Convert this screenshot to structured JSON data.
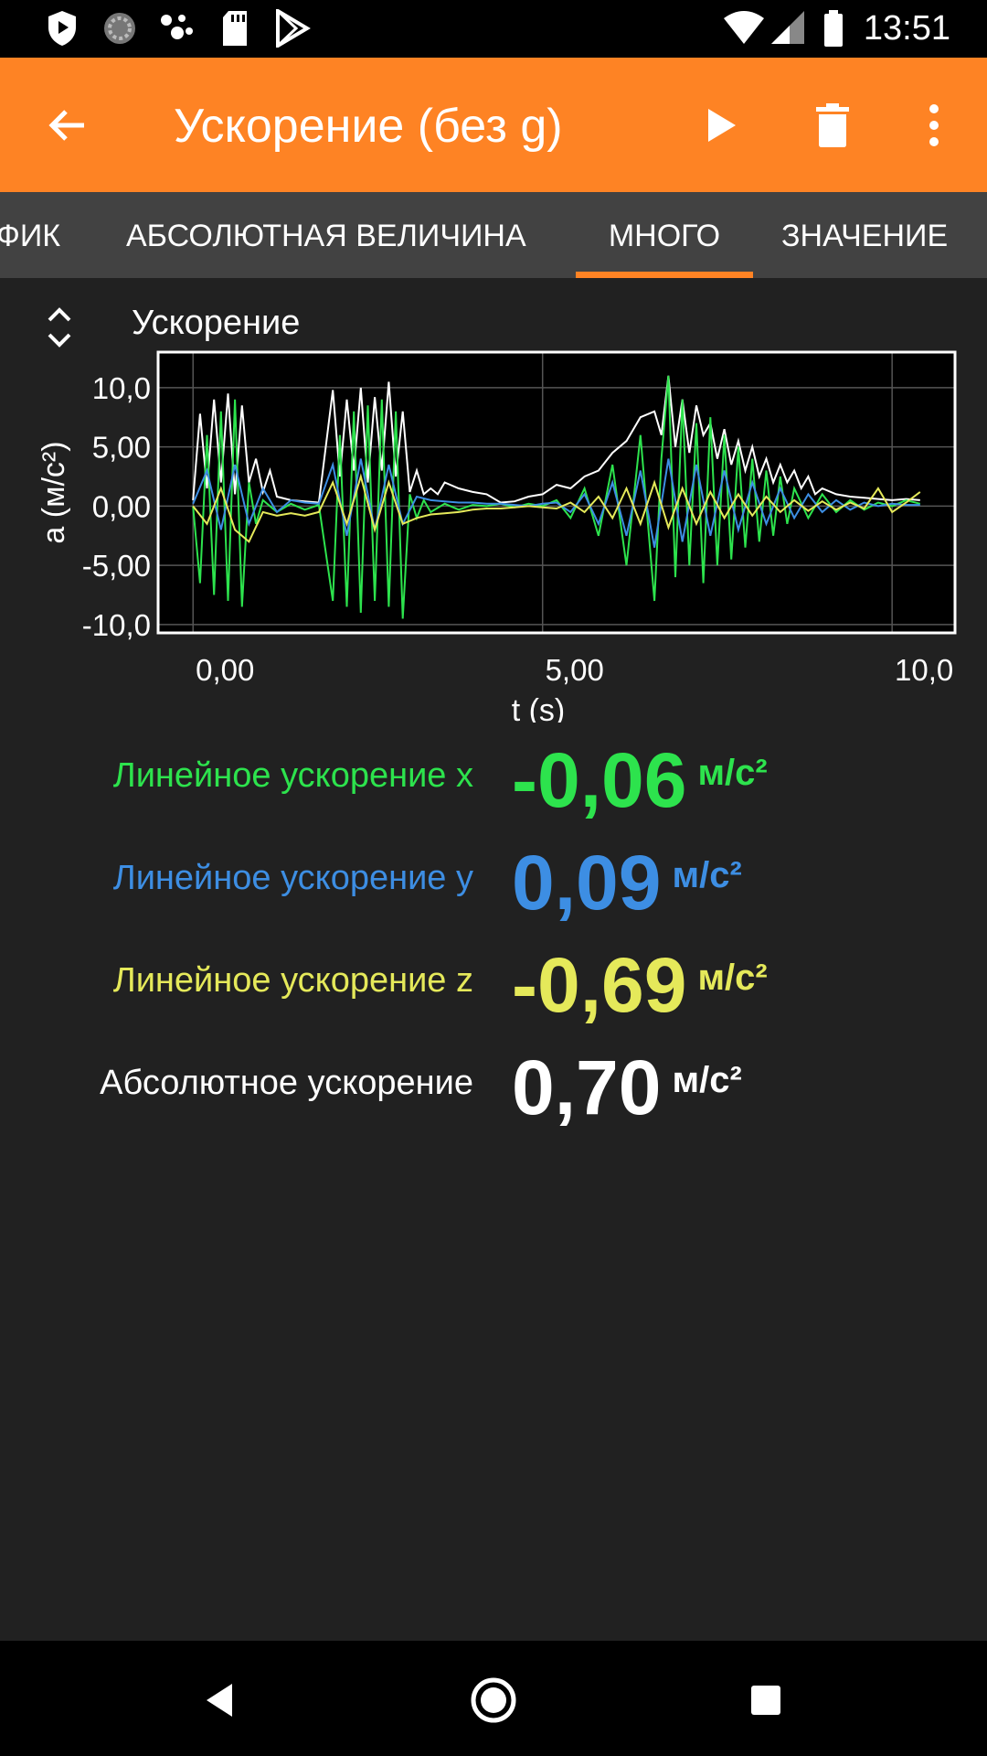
{
  "status_bar": {
    "time": "13:51",
    "left_icons": [
      "shield-icon",
      "sync-icon",
      "assistant-icon",
      "sd-card-icon",
      "play-store-icon"
    ],
    "right_icons": [
      "wifi-icon",
      "signal-icon",
      "battery-icon"
    ]
  },
  "app_bar": {
    "title": "Ускорение (без g)",
    "back_icon": "arrow-back-icon",
    "actions": [
      "play-icon",
      "delete-icon",
      "more-vert-icon"
    ]
  },
  "tabs": {
    "items": [
      "ФИК",
      "АБСОЛЮТНАЯ ВЕЛИЧИНА",
      "МНОГО",
      "ЗНАЧЕНИЕ"
    ],
    "selected": "МНОГО",
    "accent": "#fe8324"
  },
  "graph": {
    "title": "Ускорение",
    "expand_icon": "unfold-icon"
  },
  "chart_data": {
    "type": "line",
    "title": "Ускорение",
    "xlabel": "t (s)",
    "ylabel": "a (м/с²)",
    "xlim": [
      -0.5,
      10.9
    ],
    "ylim": [
      -10.7,
      13.0
    ],
    "x_ticks": [
      "0,00",
      "5,00",
      "10,0"
    ],
    "x_tick_values": [
      0,
      5,
      10
    ],
    "y_ticks": [
      "10,0",
      "5,00",
      "0,00",
      "-5,00",
      "-10,0"
    ],
    "y_tick_values": [
      10,
      5,
      0,
      -5,
      -10
    ],
    "grid": true,
    "series": [
      {
        "name": "Абсолютное ускорение",
        "color": "#ffffff",
        "x": [
          0.0,
          0.1,
          0.2,
          0.3,
          0.4,
          0.5,
          0.6,
          0.7,
          0.8,
          0.9,
          1.0,
          1.1,
          1.2,
          1.4,
          1.6,
          1.8,
          2.0,
          2.1,
          2.2,
          2.3,
          2.4,
          2.5,
          2.6,
          2.7,
          2.8,
          2.9,
          3.0,
          3.1,
          3.2,
          3.3,
          3.4,
          3.5,
          3.6,
          3.8,
          4.0,
          4.2,
          4.4,
          4.6,
          4.8,
          5.0,
          5.2,
          5.4,
          5.6,
          5.8,
          6.0,
          6.2,
          6.4,
          6.6,
          6.7,
          6.8,
          6.9,
          7.0,
          7.1,
          7.2,
          7.3,
          7.4,
          7.5,
          7.6,
          7.7,
          7.8,
          7.9,
          8.0,
          8.1,
          8.2,
          8.3,
          8.4,
          8.5,
          8.6,
          8.7,
          8.8,
          8.9,
          9.0,
          9.2,
          9.4,
          9.6,
          9.8,
          10.0,
          10.2,
          10.4
        ],
        "y": [
          0.5,
          7.8,
          1.5,
          9.0,
          2.0,
          9.5,
          1.0,
          8.5,
          2.0,
          4.0,
          1.2,
          3.0,
          0.8,
          0.5,
          0.4,
          0.3,
          9.8,
          2.5,
          9.0,
          3.0,
          10.0,
          2.0,
          9.2,
          3.0,
          10.5,
          2.5,
          8.0,
          1.2,
          3.0,
          1.0,
          1.5,
          1.0,
          2.0,
          1.5,
          1.2,
          1.0,
          0.3,
          0.4,
          0.8,
          1.0,
          1.8,
          1.5,
          2.5,
          3.0,
          4.5,
          5.5,
          7.5,
          8.0,
          6.0,
          11.0,
          5.0,
          9.0,
          4.5,
          8.5,
          6.0,
          7.0,
          4.0,
          6.5,
          3.5,
          5.5,
          3.0,
          5.0,
          2.5,
          4.0,
          2.0,
          3.5,
          2.0,
          3.0,
          1.5,
          2.5,
          1.0,
          1.5,
          1.0,
          0.8,
          0.7,
          0.6,
          0.5,
          0.6,
          0.5
        ]
      },
      {
        "name": "Линейное ускорение x",
        "color": "#2de34d",
        "x": [
          0.0,
          0.1,
          0.2,
          0.3,
          0.4,
          0.5,
          0.6,
          0.7,
          0.8,
          0.9,
          1.0,
          1.2,
          1.4,
          1.6,
          1.8,
          2.0,
          2.1,
          2.2,
          2.3,
          2.4,
          2.5,
          2.6,
          2.7,
          2.8,
          2.9,
          3.0,
          3.1,
          3.2,
          3.3,
          3.4,
          3.6,
          3.8,
          4.0,
          4.2,
          4.4,
          4.6,
          4.8,
          5.0,
          5.2,
          5.4,
          5.6,
          5.8,
          6.0,
          6.2,
          6.4,
          6.6,
          6.7,
          6.8,
          6.9,
          7.0,
          7.1,
          7.2,
          7.3,
          7.4,
          7.5,
          7.6,
          7.7,
          7.8,
          7.9,
          8.0,
          8.1,
          8.2,
          8.3,
          8.4,
          8.5,
          8.6,
          8.8,
          9.0,
          9.2,
          9.4,
          9.6,
          9.8,
          10.0,
          10.2,
          10.4
        ],
        "y": [
          0.0,
          -6.5,
          6.0,
          -7.5,
          8.0,
          -8.0,
          9.0,
          -8.5,
          2.0,
          -1.5,
          0.5,
          -0.5,
          0.2,
          -0.3,
          0.1,
          -8.0,
          6.0,
          -8.5,
          8.0,
          -9.0,
          8.5,
          -8.0,
          9.0,
          -8.5,
          8.0,
          -9.5,
          1.0,
          -1.0,
          0.5,
          -0.5,
          0.2,
          -0.3,
          0.1,
          0.0,
          0.2,
          -0.1,
          0.2,
          0.0,
          0.5,
          -1.0,
          1.5,
          -2.5,
          3.5,
          -5.0,
          6.0,
          -8.0,
          4.0,
          11.0,
          -6.0,
          9.0,
          -5.0,
          7.0,
          -6.5,
          7.5,
          -5.0,
          6.0,
          -4.5,
          5.0,
          -3.5,
          4.0,
          -3.0,
          3.0,
          -2.5,
          2.5,
          -1.5,
          1.5,
          -1.0,
          1.0,
          -0.5,
          0.5,
          -0.3,
          0.3,
          0.0,
          0.5,
          0.2
        ]
      },
      {
        "name": "Линейное ускорение y",
        "color": "#3d8ee3",
        "x": [
          0.0,
          0.2,
          0.4,
          0.6,
          0.8,
          1.0,
          1.2,
          1.4,
          1.6,
          1.8,
          2.0,
          2.2,
          2.4,
          2.6,
          2.8,
          3.0,
          3.2,
          3.4,
          3.6,
          3.8,
          4.0,
          4.2,
          4.4,
          4.6,
          4.8,
          5.0,
          5.2,
          5.4,
          5.6,
          5.8,
          6.0,
          6.2,
          6.4,
          6.6,
          6.8,
          7.0,
          7.2,
          7.4,
          7.6,
          7.8,
          8.0,
          8.2,
          8.4,
          8.6,
          8.8,
          9.0,
          9.2,
          9.4,
          9.6,
          9.8,
          10.0,
          10.2,
          10.4
        ],
        "y": [
          0.2,
          3.0,
          -2.0,
          3.5,
          -1.5,
          1.5,
          -0.5,
          0.5,
          0.3,
          0.2,
          3.5,
          -2.5,
          4.0,
          -2.0,
          3.5,
          -1.5,
          0.8,
          0.5,
          0.4,
          0.3,
          0.3,
          0.2,
          0.2,
          0.1,
          0.0,
          0.2,
          0.3,
          -0.5,
          1.0,
          -1.5,
          2.0,
          -2.5,
          3.0,
          -3.5,
          4.0,
          -3.0,
          3.5,
          -2.5,
          3.0,
          -2.0,
          2.0,
          -1.5,
          1.5,
          -1.0,
          1.0,
          -0.5,
          0.5,
          -0.3,
          0.3,
          0.0,
          0.2,
          0.1,
          0.1
        ]
      },
      {
        "name": "Линейное ускорение z",
        "color": "#e5e95a",
        "x": [
          0.0,
          0.2,
          0.4,
          0.6,
          0.8,
          1.0,
          1.2,
          1.4,
          1.6,
          1.8,
          2.0,
          2.2,
          2.4,
          2.6,
          2.8,
          3.0,
          3.2,
          3.4,
          3.6,
          3.8,
          4.0,
          4.2,
          4.4,
          4.6,
          4.8,
          5.0,
          5.2,
          5.4,
          5.6,
          5.8,
          6.0,
          6.2,
          6.4,
          6.6,
          6.8,
          7.0,
          7.2,
          7.4,
          7.6,
          7.8,
          8.0,
          8.2,
          8.4,
          8.6,
          8.8,
          9.0,
          9.2,
          9.4,
          9.6,
          9.8,
          10.0,
          10.2,
          10.4
        ],
        "y": [
          0.0,
          -1.5,
          1.5,
          -2.0,
          -3.0,
          -0.5,
          -0.8,
          -0.6,
          -0.8,
          -0.5,
          2.0,
          -1.5,
          2.5,
          -2.0,
          2.0,
          -1.5,
          -1.0,
          -0.7,
          -0.6,
          -0.5,
          -0.3,
          -0.2,
          -0.2,
          -0.1,
          0.0,
          -0.1,
          -0.2,
          0.3,
          -0.5,
          0.8,
          -1.0,
          1.5,
          -1.5,
          2.0,
          -1.8,
          1.5,
          -1.5,
          1.2,
          -1.0,
          1.0,
          -0.8,
          0.8,
          -0.5,
          0.5,
          -0.4,
          0.4,
          -0.3,
          0.3,
          -0.2,
          1.5,
          -0.5,
          0.3,
          1.2
        ]
      }
    ]
  },
  "values": [
    {
      "label": "Линейное ускорение x",
      "value": "-0,06",
      "unit": "м/с²",
      "color": "#2de34d"
    },
    {
      "label": "Линейное ускорение y",
      "value": "0,09",
      "unit": "м/с²",
      "color": "#3d8ee3"
    },
    {
      "label": "Линейное ускорение z",
      "value": "-0,69",
      "unit": "м/с²",
      "color": "#e5e95a"
    },
    {
      "label": "Абсолютное ускорение",
      "value": "0,70",
      "unit": "м/с²",
      "color": "#ffffff"
    }
  ],
  "nav_bar": {
    "buttons": [
      "back-triangle-icon",
      "home-circle-icon",
      "recents-square-icon"
    ]
  }
}
